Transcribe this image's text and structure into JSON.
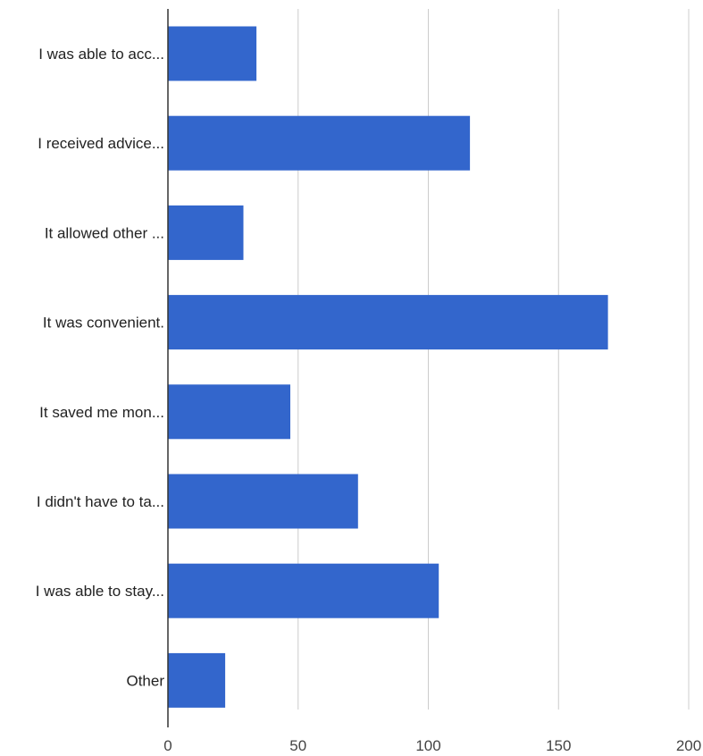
{
  "chart_data": {
    "type": "bar",
    "orientation": "horizontal",
    "categories": [
      "I was able to acc...",
      "I received advice...",
      "It allowed other ...",
      "It was convenient.",
      "It saved me mon...",
      "I didn't have to ta...",
      "I was able to stay...",
      "Other"
    ],
    "values": [
      34,
      116,
      29,
      169,
      47,
      73,
      104,
      22
    ],
    "xlim": [
      0,
      200
    ],
    "xticks": [
      0,
      50,
      100,
      150,
      200
    ],
    "title": "",
    "xlabel": "",
    "ylabel": "",
    "grid": "vertical",
    "legend": "none",
    "bar_color": "#3366cc",
    "grid_color": "#cccccc",
    "axis_color": "#333333"
  }
}
